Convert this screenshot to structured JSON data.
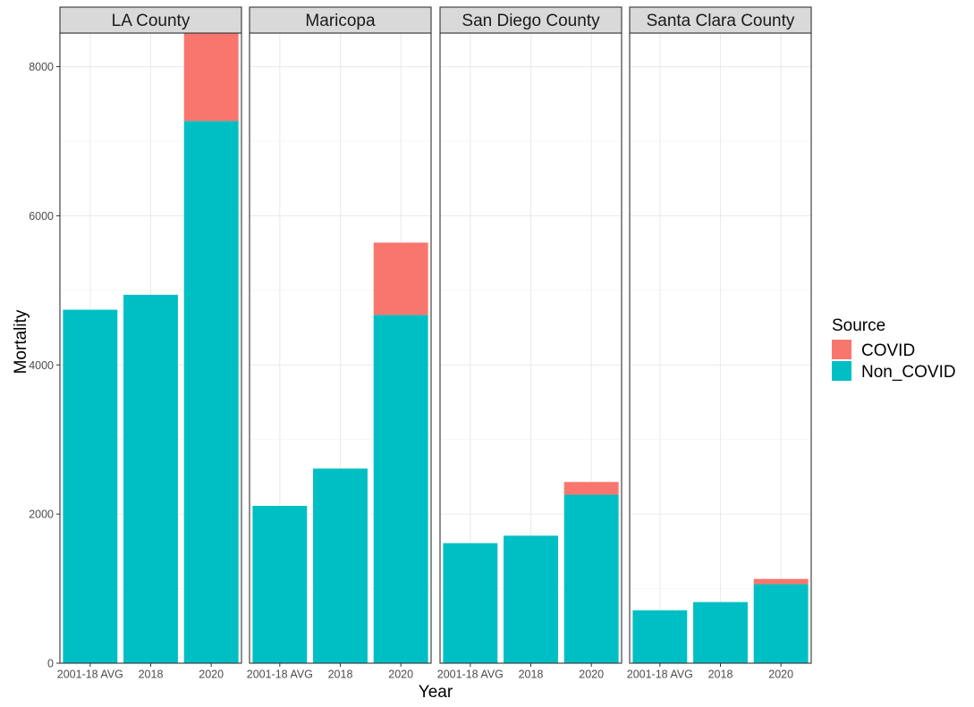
{
  "chart_data": {
    "type": "bar",
    "stacked": true,
    "facet_by": "county",
    "xlabel": "Year",
    "ylabel": "Mortality",
    "ylim": [
      0,
      8450
    ],
    "y_ticks": [
      0,
      2000,
      4000,
      6000,
      8000
    ],
    "categories": [
      "2001-18 AVG",
      "2018",
      "2020"
    ],
    "legend": {
      "title": "Source",
      "position": "right",
      "entries": [
        {
          "name": "COVID",
          "color": "#F8766D"
        },
        {
          "name": "Non_COVID",
          "color": "#00BFC4"
        }
      ]
    },
    "grid": true,
    "panels": [
      {
        "title": "LA County",
        "series": [
          {
            "name": "Non_COVID",
            "values": [
              4740,
              4940,
              7270
            ]
          },
          {
            "name": "COVID",
            "values": [
              0,
              0,
              1180
            ]
          }
        ]
      },
      {
        "title": "Maricopa",
        "series": [
          {
            "name": "Non_COVID",
            "values": [
              2110,
              2610,
              4670
            ]
          },
          {
            "name": "COVID",
            "values": [
              0,
              0,
              970
            ]
          }
        ]
      },
      {
        "title": "San Diego County",
        "series": [
          {
            "name": "Non_COVID",
            "values": [
              1610,
              1710,
              2260
            ]
          },
          {
            "name": "COVID",
            "values": [
              0,
              0,
              170
            ]
          }
        ]
      },
      {
        "title": "Santa Clara County",
        "series": [
          {
            "name": "Non_COVID",
            "values": [
              710,
              820,
              1060
            ]
          },
          {
            "name": "COVID",
            "values": [
              0,
              0,
              70
            ]
          }
        ]
      }
    ]
  }
}
